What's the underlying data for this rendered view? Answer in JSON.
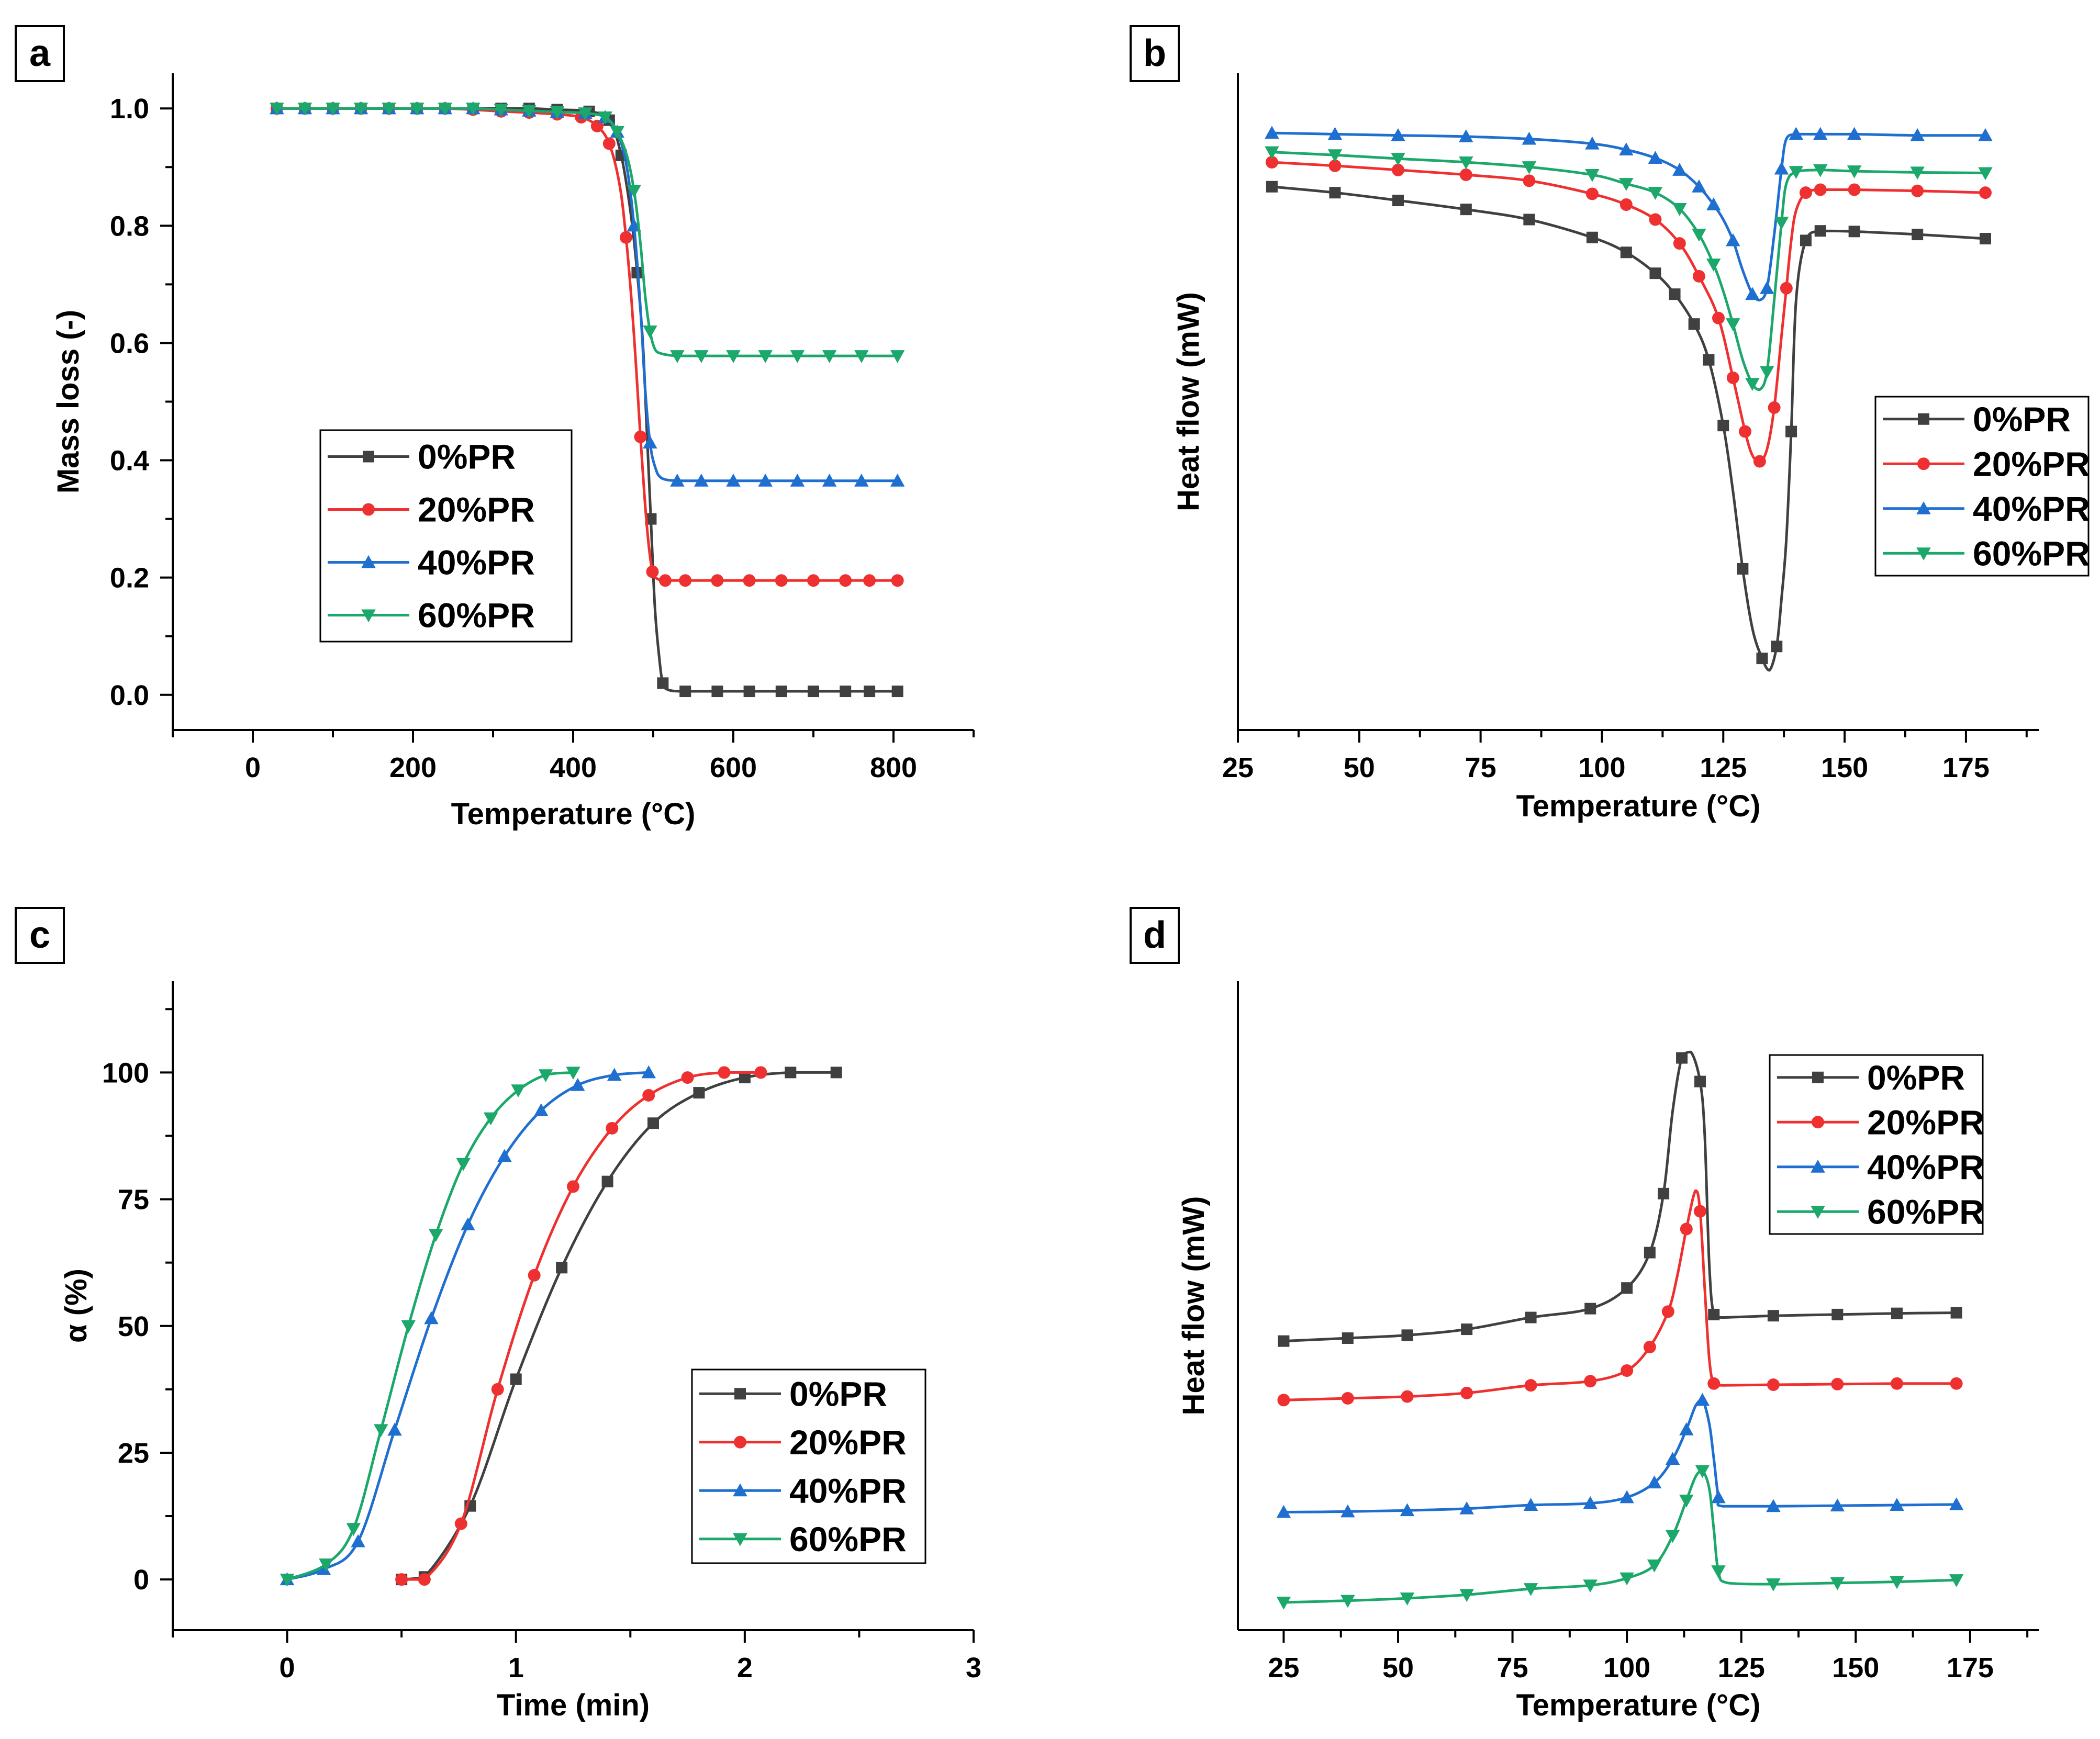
{
  "colors": {
    "0%PR": "#404040",
    "20%PR": "#ef3030",
    "40%PR": "#1f6fd0",
    "60%PR": "#1ca86a"
  },
  "chart_data": [
    {
      "panel": "a",
      "type": "line",
      "xlabel": "Temperature (°C)",
      "ylabel": "Mass loss (-)",
      "xlim": [
        -100,
        900
      ],
      "ylim": [
        -0.06,
        1.06
      ],
      "xticks": [
        0,
        200,
        400,
        600,
        800
      ],
      "yticks": [
        0.0,
        0.2,
        0.4,
        0.6,
        0.8,
        1.0
      ],
      "yformat": 1,
      "legend": "center-left",
      "series": [
        {
          "name": "0%PR",
          "marker": "square",
          "x": [
            30,
            65,
            100,
            135,
            170,
            205,
            240,
            275,
            310,
            345,
            380,
            420,
            445,
            460,
            472,
            480,
            487,
            492,
            497,
            502,
            507,
            512,
            520,
            540,
            580,
            620,
            660,
            700,
            740,
            770,
            805
          ],
          "y": [
            1.0,
            1.0,
            1.0,
            1.0,
            1.0,
            1.0,
            1.0,
            1.0,
            1.0,
            1.0,
            0.998,
            0.995,
            0.98,
            0.92,
            0.82,
            0.72,
            0.6,
            0.45,
            0.3,
            0.15,
            0.07,
            0.02,
            0.008,
            0.006,
            0.006,
            0.006,
            0.006,
            0.006,
            0.006,
            0.006,
            0.006
          ]
        },
        {
          "name": "20%PR",
          "marker": "circle",
          "x": [
            30,
            65,
            100,
            135,
            170,
            205,
            240,
            275,
            310,
            345,
            380,
            410,
            430,
            445,
            458,
            466,
            473,
            479,
            484,
            489,
            494,
            499,
            505,
            515,
            540,
            580,
            620,
            660,
            700,
            740,
            770,
            805
          ],
          "y": [
            1.0,
            1.0,
            1.0,
            1.0,
            1.0,
            1.0,
            1.0,
            0.998,
            0.995,
            0.993,
            0.99,
            0.985,
            0.97,
            0.94,
            0.87,
            0.78,
            0.67,
            0.55,
            0.44,
            0.34,
            0.26,
            0.21,
            0.198,
            0.195,
            0.195,
            0.195,
            0.195,
            0.195,
            0.195,
            0.195,
            0.195,
            0.195
          ]
        },
        {
          "name": "40%PR",
          "marker": "triangle-up",
          "x": [
            30,
            65,
            100,
            135,
            170,
            205,
            240,
            275,
            310,
            345,
            380,
            415,
            440,
            455,
            467,
            476,
            484,
            490,
            496,
            502,
            510,
            530,
            560,
            600,
            640,
            680,
            720,
            760,
            805
          ],
          "y": [
            1.0,
            1.0,
            1.0,
            1.0,
            1.0,
            1.0,
            1.0,
            1.0,
            0.998,
            0.996,
            0.994,
            0.992,
            0.985,
            0.96,
            0.9,
            0.8,
            0.66,
            0.52,
            0.43,
            0.39,
            0.37,
            0.365,
            0.365,
            0.365,
            0.365,
            0.365,
            0.365,
            0.365,
            0.365
          ]
        },
        {
          "name": "60%PR",
          "marker": "triangle-down",
          "x": [
            30,
            65,
            100,
            135,
            170,
            205,
            240,
            275,
            310,
            345,
            380,
            415,
            440,
            455,
            467,
            476,
            484,
            490,
            496,
            502,
            510,
            530,
            560,
            600,
            640,
            680,
            720,
            760,
            805
          ],
          "y": [
            1.0,
            1.0,
            1.0,
            1.0,
            1.0,
            1.0,
            1.0,
            1.0,
            0.998,
            0.996,
            0.994,
            0.992,
            0.985,
            0.96,
            0.92,
            0.86,
            0.77,
            0.68,
            0.62,
            0.59,
            0.582,
            0.578,
            0.578,
            0.578,
            0.578,
            0.578,
            0.578,
            0.578,
            0.578
          ]
        }
      ]
    },
    {
      "panel": "b",
      "type": "line",
      "xlabel": "Temperature (°C)",
      "ylabel": "Heat flow (mW)",
      "xlim": [
        25,
        190
      ],
      "ylim": [
        0,
        1.1
      ],
      "xticks": [
        25,
        50,
        75,
        100,
        125,
        150,
        175
      ],
      "yticks": [],
      "legend": "right",
      "series": [
        {
          "name": "0%PR",
          "marker": "square",
          "x": [
            32,
            45,
            58,
            72,
            85,
            98,
            105,
            111,
            115,
            119,
            122,
            125,
            127,
            129,
            131,
            133,
            134.5,
            136,
            137,
            138,
            139,
            140,
            142,
            145,
            152,
            165,
            179
          ],
          "y": [
            0.91,
            0.9,
            0.887,
            0.872,
            0.855,
            0.825,
            0.8,
            0.765,
            0.73,
            0.68,
            0.62,
            0.51,
            0.4,
            0.27,
            0.17,
            0.12,
            0.1,
            0.14,
            0.22,
            0.32,
            0.5,
            0.72,
            0.82,
            0.836,
            0.835,
            0.83,
            0.823
          ]
        },
        {
          "name": "20%PR",
          "marker": "circle",
          "x": [
            32,
            45,
            58,
            72,
            85,
            98,
            105,
            111,
            116,
            120,
            124,
            127,
            129.5,
            131,
            132.5,
            134,
            135.5,
            137,
            138,
            139,
            140,
            142,
            145,
            152,
            165,
            179
          ],
          "y": [
            0.951,
            0.945,
            0.938,
            0.93,
            0.92,
            0.898,
            0.88,
            0.855,
            0.815,
            0.76,
            0.69,
            0.59,
            0.5,
            0.46,
            0.45,
            0.47,
            0.54,
            0.66,
            0.74,
            0.82,
            0.87,
            0.9,
            0.905,
            0.905,
            0.903,
            0.9
          ]
        },
        {
          "name": "40%PR",
          "marker": "triangle-up",
          "x": [
            32,
            45,
            58,
            72,
            85,
            98,
            105,
            111,
            116,
            120,
            123,
            125,
            127,
            129,
            131,
            132.5,
            134,
            135.5,
            137,
            138,
            140,
            145,
            152,
            165,
            179
          ],
          "y": [
            1.0,
            0.998,
            0.996,
            0.994,
            0.99,
            0.982,
            0.972,
            0.958,
            0.938,
            0.91,
            0.88,
            0.855,
            0.82,
            0.77,
            0.73,
            0.72,
            0.74,
            0.83,
            0.94,
            0.99,
            0.998,
            0.998,
            0.998,
            0.996,
            0.996
          ]
        },
        {
          "name": "60%PR",
          "marker": "triangle-down",
          "x": [
            32,
            45,
            58,
            72,
            85,
            98,
            105,
            111,
            116,
            120,
            123,
            125,
            127,
            129,
            131,
            132.5,
            134,
            135.5,
            137,
            138,
            140,
            145,
            152,
            165,
            179
          ],
          "y": [
            0.968,
            0.963,
            0.957,
            0.951,
            0.943,
            0.93,
            0.915,
            0.9,
            0.873,
            0.83,
            0.78,
            0.735,
            0.68,
            0.62,
            0.58,
            0.57,
            0.6,
            0.72,
            0.85,
            0.915,
            0.935,
            0.938,
            0.936,
            0.934,
            0.933
          ]
        }
      ]
    },
    {
      "panel": "c",
      "type": "line",
      "xlabel": "Time (min)",
      "ylabel": "α (%)",
      "xlim": [
        -0.5,
        3
      ],
      "ylim": [
        -10,
        118
      ],
      "xticks": [
        0,
        1,
        2,
        3
      ],
      "yticks": [
        0,
        25,
        50,
        75,
        100
      ],
      "legend": "bottom-right",
      "series": [
        {
          "name": "0%PR",
          "marker": "square",
          "x": [
            0.5,
            0.6,
            0.8,
            1.0,
            1.2,
            1.4,
            1.6,
            1.8,
            2.0,
            2.2,
            2.4
          ],
          "y": [
            0,
            0.5,
            14.5,
            39.5,
            61.5,
            78.5,
            90,
            96,
            99,
            100,
            100
          ]
        },
        {
          "name": "20%PR",
          "marker": "circle",
          "x": [
            0.5,
            0.6,
            0.76,
            0.92,
            1.08,
            1.25,
            1.42,
            1.58,
            1.75,
            1.91,
            2.07
          ],
          "y": [
            0,
            0,
            11,
            37.5,
            60,
            77.5,
            89,
            95.5,
            99,
            100,
            100
          ]
        },
        {
          "name": "40%PR",
          "marker": "triangle-up",
          "x": [
            0,
            0.16,
            0.31,
            0.47,
            0.63,
            0.79,
            0.95,
            1.11,
            1.27,
            1.43,
            1.58
          ],
          "y": [
            0,
            2,
            7.5,
            29.5,
            51.5,
            70,
            83.5,
            92.5,
            97.5,
            99.5,
            100
          ]
        },
        {
          "name": "60%PR",
          "marker": "triangle-down",
          "x": [
            0,
            0.17,
            0.29,
            0.41,
            0.53,
            0.65,
            0.77,
            0.89,
            1.01,
            1.13,
            1.25
          ],
          "y": [
            0,
            3,
            10,
            29.5,
            50,
            68,
            82,
            91,
            96.5,
            99.5,
            100
          ]
        }
      ]
    },
    {
      "panel": "d",
      "type": "line",
      "xlabel": "Temperature (°C)",
      "ylabel": "Heat flow (mW)",
      "xlim": [
        15,
        190
      ],
      "ylim": [
        0,
        1.1
      ],
      "xticks": [
        25,
        50,
        75,
        100,
        125,
        150,
        175
      ],
      "yticks": [],
      "legend": "top-right",
      "series": [
        {
          "name": "0%PR",
          "marker": "square",
          "x": [
            25,
            39,
            52,
            65,
            79,
            92,
            100,
            105,
            108,
            110,
            112,
            114,
            116,
            117,
            118,
            119,
            121,
            132,
            146,
            159,
            172
          ],
          "y": [
            0.49,
            0.495,
            0.5,
            0.51,
            0.53,
            0.545,
            0.58,
            0.64,
            0.74,
            0.88,
            0.97,
            0.98,
            0.93,
            0.84,
            0.62,
            0.535,
            0.53,
            0.533,
            0.535,
            0.537,
            0.538
          ]
        },
        {
          "name": "20%PR",
          "marker": "circle",
          "x": [
            25,
            39,
            52,
            65,
            79,
            92,
            100,
            105,
            109,
            111,
            113,
            115,
            116,
            117,
            118,
            119,
            121,
            132,
            146,
            159,
            172
          ],
          "y": [
            0.39,
            0.393,
            0.396,
            0.402,
            0.415,
            0.422,
            0.44,
            0.48,
            0.54,
            0.6,
            0.68,
            0.745,
            0.71,
            0.58,
            0.46,
            0.418,
            0.415,
            0.416,
            0.417,
            0.418,
            0.418
          ]
        },
        {
          "name": "40%PR",
          "marker": "triangle-up",
          "x": [
            25,
            39,
            52,
            65,
            79,
            92,
            100,
            106,
            110,
            113,
            115,
            116.5,
            118,
            119,
            120,
            121,
            132,
            146,
            159,
            172
          ],
          "y": [
            0.2,
            0.201,
            0.203,
            0.206,
            0.212,
            0.215,
            0.225,
            0.25,
            0.29,
            0.34,
            0.38,
            0.39,
            0.35,
            0.29,
            0.225,
            0.21,
            0.21,
            0.211,
            0.212,
            0.213
          ]
        },
        {
          "name": "60%PR",
          "marker": "triangle-down",
          "x": [
            25,
            39,
            52,
            65,
            79,
            92,
            100,
            106,
            110,
            113,
            115,
            116.5,
            118,
            119,
            120,
            122,
            132,
            146,
            159,
            172
          ],
          "y": [
            0.047,
            0.05,
            0.054,
            0.06,
            0.07,
            0.076,
            0.088,
            0.11,
            0.16,
            0.22,
            0.26,
            0.27,
            0.24,
            0.17,
            0.1,
            0.08,
            0.078,
            0.08,
            0.082,
            0.085
          ]
        }
      ]
    }
  ]
}
